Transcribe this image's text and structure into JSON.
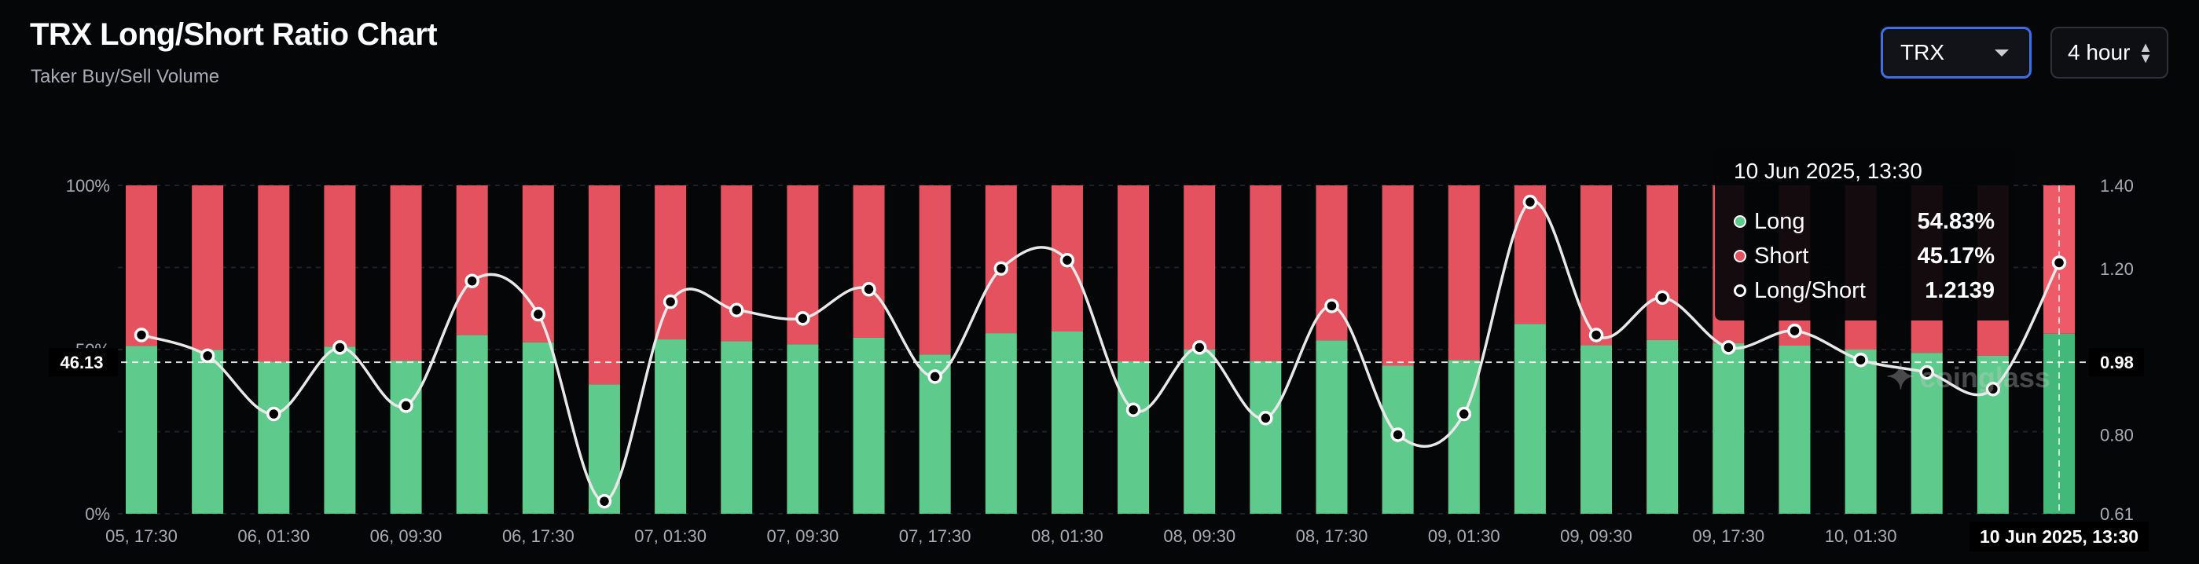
{
  "header": {
    "title": "TRX Long/Short Ratio Chart",
    "subtitle": "Taker Buy/Sell Volume"
  },
  "controls": {
    "coin": "TRX",
    "interval": "4 hour"
  },
  "tooltip": {
    "date": "10 Jun 2025, 13:30",
    "rows": [
      {
        "name": "Long",
        "value": "54.83%",
        "color": "#5ecb8c"
      },
      {
        "name": "Short",
        "value": "45.17%",
        "color": "#e5525f"
      },
      {
        "name": "Long/Short",
        "value": "1.2139",
        "color": "#ffffff"
      }
    ]
  },
  "watermark": "coinglass",
  "colors": {
    "long": "#5ecb8c",
    "short": "#e5525f",
    "line": "#e8e8e8",
    "highlight_long": "#43b979",
    "highlight_short": "#ef5a68"
  },
  "chart_data": {
    "type": "bar",
    "stacked": true,
    "left_axis": {
      "ticks": [
        "100%",
        "50%",
        "0%"
      ],
      "range": [
        0,
        100
      ]
    },
    "right_axis": {
      "ticks": [
        "1.40",
        "1.20",
        "0.98",
        "0.80",
        "0.61"
      ],
      "range": [
        0.61,
        1.4
      ]
    },
    "x_tick_labels": [
      "05, 17:30",
      "06, 01:30",
      "06, 09:30",
      "06, 17:30",
      "07, 01:30",
      "07, 09:30",
      "07, 17:30",
      "08, 01:30",
      "08, 09:30",
      "08, 17:30",
      "09, 01:30",
      "09, 09:30",
      "09, 17:30",
      "10, 01:30",
      "10"
    ],
    "crosshair": {
      "left_label": "46.13",
      "right_label": "0.98",
      "x_label": "10 Jun 2025, 13:30"
    },
    "series": [
      {
        "name": "Long",
        "values": [
          51.1,
          49.9,
          46.3,
          50.9,
          46.6,
          54.4,
          52.2,
          39.4,
          53.1,
          52.5,
          51.6,
          53.6,
          48.5,
          55.0,
          55.5,
          46.4,
          50.0,
          46.5,
          52.8,
          45.1,
          46.8,
          57.8,
          51.3,
          52.9,
          51.9,
          51.2,
          50.0,
          49.0,
          48.1,
          54.83
        ]
      },
      {
        "name": "Short",
        "values": [
          48.9,
          50.1,
          53.7,
          49.1,
          53.4,
          45.6,
          47.8,
          60.6,
          46.9,
          47.5,
          48.4,
          46.4,
          51.5,
          45.0,
          44.5,
          53.6,
          50.0,
          53.5,
          47.2,
          54.9,
          53.2,
          42.2,
          48.7,
          47.1,
          48.1,
          48.8,
          50.0,
          51.0,
          51.9,
          45.17
        ]
      },
      {
        "name": "Long/Short",
        "values": [
          1.04,
          0.99,
          0.85,
          1.01,
          0.87,
          1.17,
          1.09,
          0.64,
          1.12,
          1.1,
          1.08,
          1.15,
          0.94,
          1.2,
          1.22,
          0.86,
          1.01,
          0.84,
          1.11,
          0.8,
          0.85,
          1.36,
          1.04,
          1.13,
          1.01,
          1.05,
          0.98,
          0.95,
          0.91,
          1.2139
        ]
      }
    ]
  }
}
